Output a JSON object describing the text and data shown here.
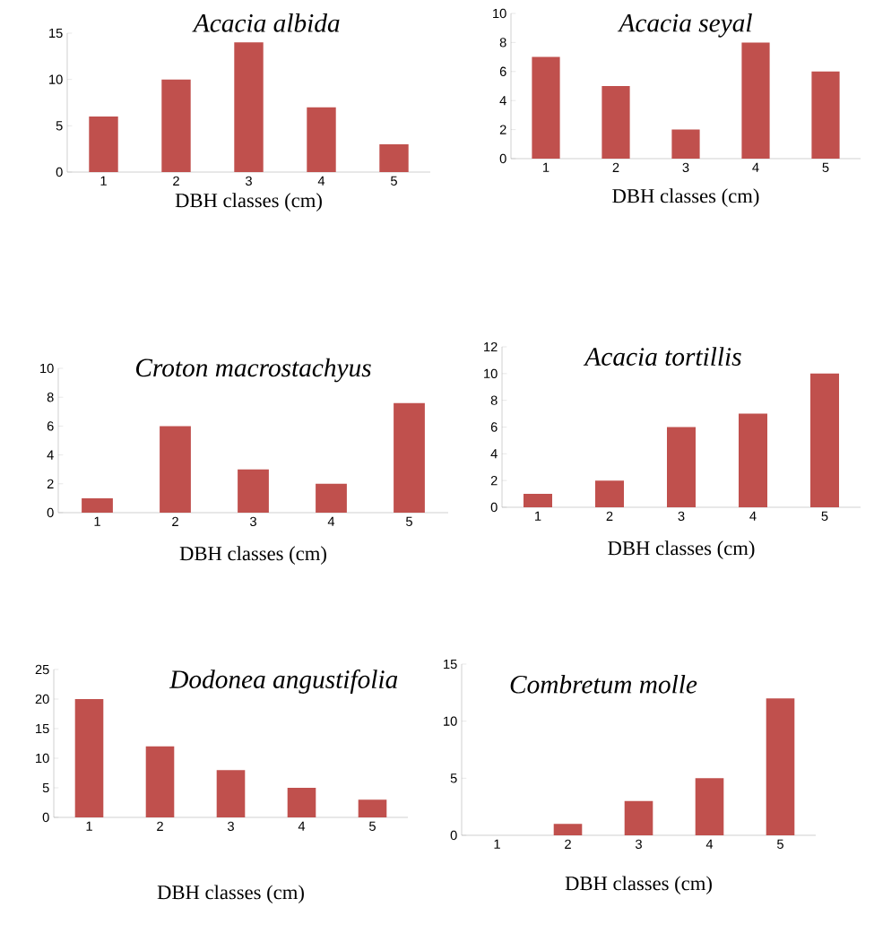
{
  "chart_data": [
    {
      "type": "bar",
      "title": "Acacia albida",
      "xlabel": "DBH classes (cm)",
      "categories": [
        "1",
        "2",
        "3",
        "4",
        "5"
      ],
      "values": [
        6,
        10,
        14,
        7,
        3
      ],
      "color": "#c0504d",
      "ylim": [
        0,
        15
      ],
      "yticks": [
        0,
        5,
        10,
        15
      ]
    },
    {
      "type": "bar",
      "title": "Acacia seyal",
      "xlabel": "DBH classes (cm)",
      "categories": [
        "1",
        "2",
        "3",
        "4",
        "5"
      ],
      "values": [
        7,
        5,
        2,
        8,
        6
      ],
      "color": "#c0504d",
      "ylim": [
        0,
        10
      ],
      "yticks": [
        0,
        2,
        4,
        6,
        8,
        10
      ]
    },
    {
      "type": "bar",
      "title": "Croton macrostachyus",
      "xlabel": "DBH classes (cm)",
      "categories": [
        "1",
        "2",
        "3",
        "4",
        "5"
      ],
      "values": [
        1,
        6,
        3,
        2,
        7.6
      ],
      "color": "#c0504d",
      "ylim": [
        0,
        10
      ],
      "yticks": [
        0,
        2,
        4,
        6,
        8,
        10
      ]
    },
    {
      "type": "bar",
      "title": "Acacia tortillis",
      "xlabel": "DBH classes (cm)",
      "categories": [
        "1",
        "2",
        "3",
        "4",
        "5"
      ],
      "values": [
        1,
        2,
        6,
        7,
        10
      ],
      "color": "#c0504d",
      "ylim": [
        0,
        12
      ],
      "yticks": [
        0,
        2,
        4,
        6,
        8,
        10,
        12
      ]
    },
    {
      "type": "bar",
      "title": "Dodonea angustifolia",
      "xlabel": "DBH classes (cm)",
      "categories": [
        "1",
        "2",
        "3",
        "4",
        "5"
      ],
      "values": [
        20,
        12,
        8,
        5,
        3
      ],
      "color": "#c0504d",
      "ylim": [
        0,
        25
      ],
      "yticks": [
        0,
        5,
        10,
        15,
        20,
        25
      ]
    },
    {
      "type": "bar",
      "title": "Combretum molle",
      "xlabel": "DBH classes (cm)",
      "categories": [
        "1",
        "2",
        "3",
        "4",
        "5"
      ],
      "values": [
        0,
        1,
        3,
        5,
        12
      ],
      "color": "#c0504d",
      "ylim": [
        0,
        15
      ],
      "yticks": [
        0,
        5,
        10,
        15
      ]
    }
  ]
}
